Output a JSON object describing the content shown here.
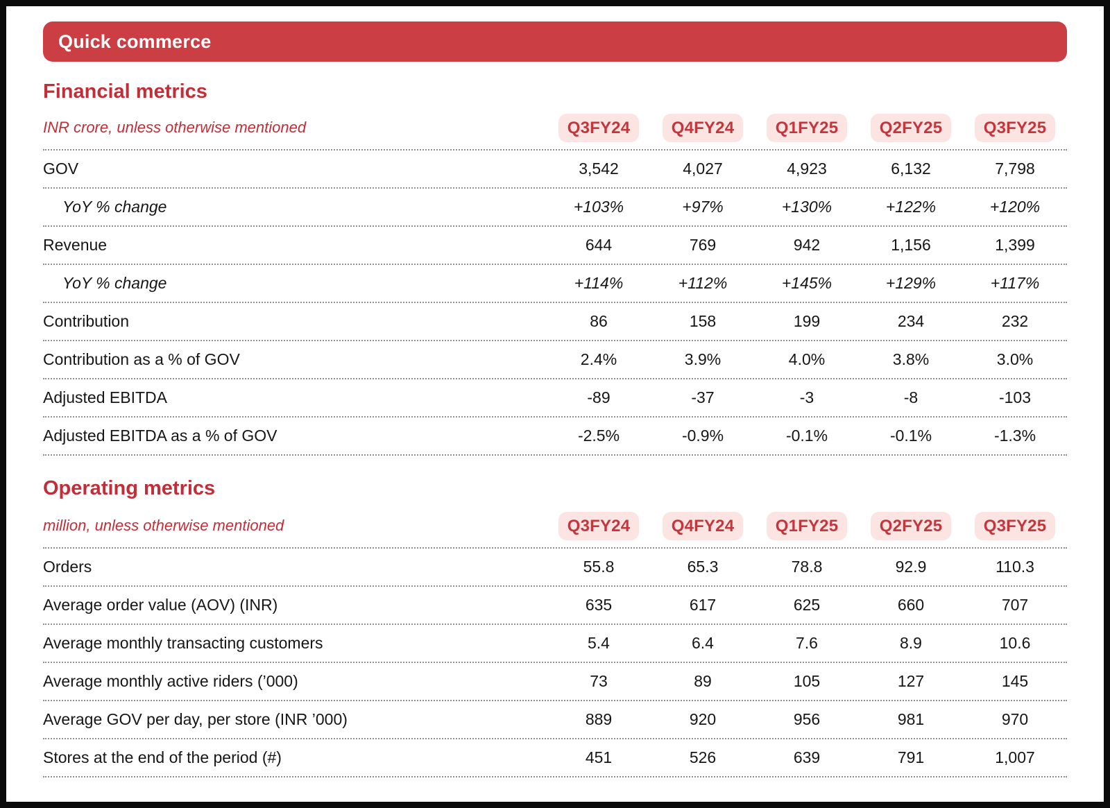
{
  "banner": {
    "title": "Quick commerce"
  },
  "colors": {
    "banner_red": "#cb3e44",
    "heading_red": "#c22e37",
    "badge_background": "#fbe4e2",
    "badge_text_red": "#c3363c",
    "body_text": "#161616",
    "dotted_rule_gray": "#8f8f8f"
  },
  "financial": {
    "title": "Financial metrics",
    "subtitle": "INR crore, unless otherwise mentioned",
    "quarters": [
      "Q3FY24",
      "Q4FY24",
      "Q1FY25",
      "Q2FY25",
      "Q3FY25"
    ],
    "rows": [
      {
        "label": "GOV",
        "values": [
          "3,542",
          "4,027",
          "4,923",
          "6,132",
          "7,798"
        ]
      },
      {
        "label": "YoY % change",
        "values": [
          "+103%",
          "+97%",
          "+130%",
          "+122%",
          "+120%"
        ]
      },
      {
        "label": "Revenue",
        "values": [
          "644",
          "769",
          "942",
          "1,156",
          "1,399"
        ]
      },
      {
        "label": "YoY % change",
        "values": [
          "+114%",
          "+112%",
          "+145%",
          "+129%",
          "+117%"
        ]
      },
      {
        "label": "Contribution",
        "values": [
          "86",
          "158",
          "199",
          "234",
          "232"
        ]
      },
      {
        "label": "Contribution as a % of GOV",
        "values": [
          "2.4%",
          "3.9%",
          "4.0%",
          "3.8%",
          "3.0%"
        ]
      },
      {
        "label": "Adjusted EBITDA",
        "values": [
          "-89",
          "-37",
          "-3",
          "-8",
          "-103"
        ]
      },
      {
        "label": "Adjusted EBITDA as a % of GOV",
        "values": [
          "-2.5%",
          "-0.9%",
          "-0.1%",
          "-0.1%",
          "-1.3%"
        ]
      }
    ]
  },
  "operating": {
    "title": "Operating metrics",
    "subtitle": "million, unless otherwise mentioned",
    "quarters": [
      "Q3FY24",
      "Q4FY24",
      "Q1FY25",
      "Q2FY25",
      "Q3FY25"
    ],
    "rows": [
      {
        "label": "Orders",
        "values": [
          "55.8",
          "65.3",
          "78.8",
          "92.9",
          "110.3"
        ]
      },
      {
        "label": "Average order value (AOV) (INR)",
        "values": [
          "635",
          "617",
          "625",
          "660",
          "707"
        ]
      },
      {
        "label": "Average monthly transacting customers",
        "values": [
          "5.4",
          "6.4",
          "7.6",
          "8.9",
          "10.6"
        ]
      },
      {
        "label": "Average monthly active riders (’000)",
        "values": [
          "73",
          "89",
          "105",
          "127",
          "145"
        ]
      },
      {
        "label": "Average GOV per day, per store (INR ’000)",
        "values": [
          "889",
          "920",
          "956",
          "981",
          "970"
        ]
      },
      {
        "label": "Stores at the end of the period (#)",
        "values": [
          "451",
          "526",
          "639",
          "791",
          "1,007"
        ]
      }
    ]
  }
}
